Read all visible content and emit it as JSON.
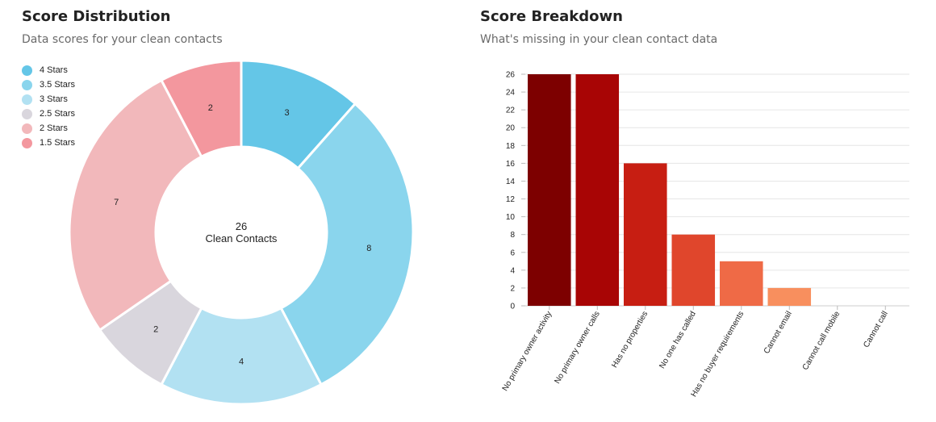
{
  "left_panel": {
    "title": "Score Distribution",
    "subtitle": "Data scores for your clean contacts"
  },
  "right_panel": {
    "title": "Score Breakdown",
    "subtitle": "What's missing in your clean contact data"
  },
  "chart_data": [
    {
      "type": "pie",
      "style": "donut",
      "center_value": "26",
      "center_label": "Clean Contacts",
      "legend_position": "top-left",
      "slices": [
        {
          "label": "4 Stars",
          "value": 3,
          "color": "#64c6e7"
        },
        {
          "label": "3.5 Stars",
          "value": 8,
          "color": "#8ad5ed"
        },
        {
          "label": "3 Stars",
          "value": 4,
          "color": "#b2e1f2"
        },
        {
          "label": "2.5 Stars",
          "value": 2,
          "color": "#d9d6dd"
        },
        {
          "label": "2 Stars",
          "value": 7,
          "color": "#f2b8bb"
        },
        {
          "label": "1.5 Stars",
          "value": 2,
          "color": "#f3979e"
        }
      ]
    },
    {
      "type": "bar",
      "categories": [
        "No primary owner activity",
        "No primary owner calls",
        "Has no properties",
        "No one has called",
        "Has no buyer requirements",
        "Cannot email",
        "Cannot call mobile",
        "Cannot call"
      ],
      "values": [
        26,
        26,
        16,
        8,
        5,
        2,
        0,
        0
      ],
      "colors": [
        "#7d0000",
        "#a80505",
        "#c71e12",
        "#e0462c",
        "#ef6a46",
        "#f88f5e",
        "#f9a978",
        "#fbc195"
      ],
      "ylim": [
        0,
        26
      ],
      "yticks": [
        0,
        2,
        4,
        6,
        8,
        10,
        12,
        14,
        16,
        18,
        20,
        22,
        24,
        26
      ],
      "grid": true
    }
  ]
}
